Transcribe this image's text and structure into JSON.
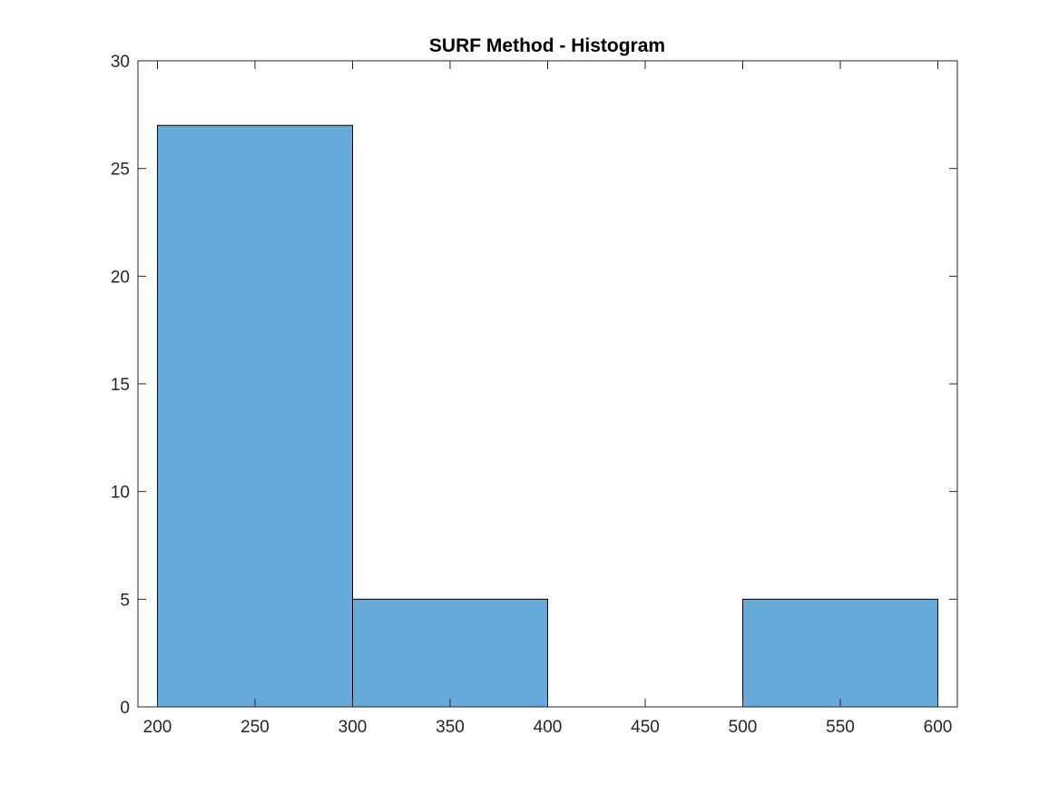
{
  "chart_data": {
    "type": "bar",
    "subtype": "histogram",
    "title": "SURF Method - Histogram",
    "xlabel": "",
    "ylabel": "",
    "bins": [
      {
        "start": 200,
        "end": 300,
        "count": 27
      },
      {
        "start": 300,
        "end": 400,
        "count": 5
      },
      {
        "start": 400,
        "end": 500,
        "count": 0
      },
      {
        "start": 500,
        "end": 600,
        "count": 5
      }
    ],
    "xlim": [
      190,
      610
    ],
    "ylim": [
      0,
      30
    ],
    "xticks": [
      200,
      250,
      300,
      350,
      400,
      450,
      500,
      550,
      600
    ],
    "yticks": [
      0,
      5,
      10,
      15,
      20,
      25,
      30
    ],
    "bar_color": "#66aad9",
    "edge_color": "#000000",
    "grid": false,
    "legend": "none"
  }
}
